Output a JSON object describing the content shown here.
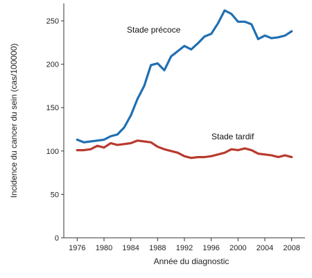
{
  "chart_data": {
    "type": "line",
    "title": "",
    "xlabel": "Année du diagnostic",
    "ylabel": "Incidence du cancer du sein (cas/100000)",
    "xlim": [
      1974,
      2010
    ],
    "ylim": [
      0,
      270
    ],
    "x_ticks": [
      1976,
      1980,
      1984,
      1988,
      1992,
      1996,
      2000,
      2004,
      2008
    ],
    "y_ticks": [
      0,
      50,
      100,
      150,
      200,
      250
    ],
    "grid": false,
    "x": [
      1976,
      1977,
      1978,
      1979,
      1980,
      1981,
      1982,
      1983,
      1984,
      1985,
      1986,
      1987,
      1988,
      1989,
      1990,
      1991,
      1992,
      1993,
      1994,
      1995,
      1996,
      1997,
      1998,
      1999,
      2000,
      2001,
      2002,
      2003,
      2004,
      2005,
      2006,
      2007,
      2008
    ],
    "series": [
      {
        "name": "Stade précoce",
        "color": "#1f6fb2",
        "values": [
          113,
          110,
          111,
          112,
          113,
          117,
          119,
          127,
          141,
          160,
          175,
          199,
          201,
          193,
          209,
          215,
          221,
          217,
          224,
          232,
          235,
          247,
          262,
          258,
          249,
          249,
          246,
          229,
          233,
          230,
          231,
          233,
          238
        ]
      },
      {
        "name": "Stade tardif",
        "color": "#b83a2e",
        "values": [
          101,
          101,
          102,
          106,
          104,
          109,
          107,
          108,
          109,
          112,
          111,
          110,
          105,
          102,
          100,
          98,
          94,
          92,
          93,
          93,
          94,
          96,
          98,
          102,
          101,
          103,
          101,
          97,
          96,
          95,
          93,
          95,
          93
        ]
      }
    ]
  }
}
